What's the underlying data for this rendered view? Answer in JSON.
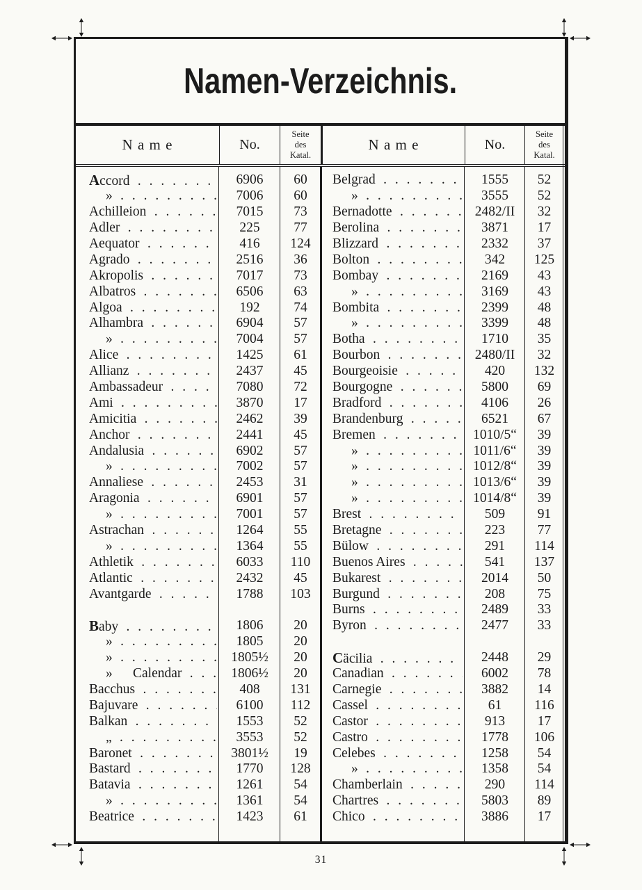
{
  "page": {
    "title": "Namen-Verzeichnis.",
    "page_number": "31"
  },
  "colors": {
    "ink": "#1c1c1c",
    "paper": "#fafaf6"
  },
  "table": {
    "header": {
      "name": "N a m e",
      "no": "No.",
      "seite_lines": [
        "Seite",
        "des",
        "Katal."
      ]
    },
    "left_rows": [
      {
        "name": "Accord",
        "cap": true,
        "no": "6906",
        "seite": "60"
      },
      {
        "name": "»",
        "ditto": true,
        "no": "7006",
        "seite": "60"
      },
      {
        "name": "Achilleion",
        "no": "7015",
        "seite": "73"
      },
      {
        "name": "Adler",
        "no": "225",
        "seite": "77"
      },
      {
        "name": "Aequator",
        "no": "416",
        "seite": "124"
      },
      {
        "name": "Agrado",
        "no": "2516",
        "seite": "36"
      },
      {
        "name": "Akropolis",
        "no": "7017",
        "seite": "73"
      },
      {
        "name": "Albatros",
        "no": "6506",
        "seite": "63"
      },
      {
        "name": "Algoa",
        "no": "192",
        "seite": "74"
      },
      {
        "name": "Alhambra",
        "no": "6904",
        "seite": "57"
      },
      {
        "name": "»",
        "ditto": true,
        "no": "7004",
        "seite": "57"
      },
      {
        "name": "Alice",
        "no": "1425",
        "seite": "61"
      },
      {
        "name": "Allianz",
        "no": "2437",
        "seite": "45"
      },
      {
        "name": "Ambassadeur",
        "no": "7080",
        "seite": "72"
      },
      {
        "name": "Ami",
        "no": "3870",
        "seite": "17"
      },
      {
        "name": "Amicitia",
        "no": "2462",
        "seite": "39"
      },
      {
        "name": "Anchor",
        "no": "2441",
        "seite": "45"
      },
      {
        "name": "Andalusia",
        "no": "6902",
        "seite": "57"
      },
      {
        "name": "»",
        "ditto": true,
        "no": "7002",
        "seite": "57"
      },
      {
        "name": "Annaliese",
        "no": "2453",
        "seite": "31"
      },
      {
        "name": "Aragonia",
        "no": "6901",
        "seite": "57"
      },
      {
        "name": "»",
        "ditto": true,
        "no": "7001",
        "seite": "57"
      },
      {
        "name": "Astrachan",
        "no": "1264",
        "seite": "55"
      },
      {
        "name": "»",
        "ditto": true,
        "no": "1364",
        "seite": "55"
      },
      {
        "name": "Athletik",
        "no": "6033",
        "seite": "110"
      },
      {
        "name": "Atlantic",
        "no": "2432",
        "seite": "45"
      },
      {
        "name": "Avantgarde",
        "no": "1788",
        "seite": "103"
      },
      {
        "gap": true
      },
      {
        "name": "Baby",
        "cap": true,
        "no": "1806",
        "seite": "20"
      },
      {
        "name": "»",
        "ditto": true,
        "no": "1805",
        "seite": "20"
      },
      {
        "name": "»",
        "ditto": true,
        "no": "1805½",
        "seite": "20"
      },
      {
        "name": "»      Calendar",
        "ditto": true,
        "no": "1806½",
        "seite": "20"
      },
      {
        "name": "Bacchus",
        "no": "408",
        "seite": "131"
      },
      {
        "name": "Bajuvare",
        "no": "6100",
        "seite": "112"
      },
      {
        "name": "Balkan",
        "no": "1553",
        "seite": "52"
      },
      {
        "name": "„",
        "ditto": true,
        "no": "3553",
        "seite": "52"
      },
      {
        "name": "Baronet",
        "no": "3801½",
        "seite": "19"
      },
      {
        "name": "Bastard",
        "no": "1770",
        "seite": "128"
      },
      {
        "name": "Batavia",
        "no": "1261",
        "seite": "54"
      },
      {
        "name": "»",
        "ditto": true,
        "no": "1361",
        "seite": "54"
      },
      {
        "name": "Beatrice",
        "no": "1423",
        "seite": "61"
      }
    ],
    "right_rows": [
      {
        "name": "Belgrad",
        "no": "1555",
        "seite": "52"
      },
      {
        "name": "»",
        "ditto": true,
        "no": "3555",
        "seite": "52"
      },
      {
        "name": "Bernadotte",
        "no": "2482/II",
        "seite": "32"
      },
      {
        "name": "Berolina",
        "no": "3871",
        "seite": "17"
      },
      {
        "name": "Blizzard",
        "no": "2332",
        "seite": "37"
      },
      {
        "name": "Bolton",
        "no": "342",
        "seite": "125"
      },
      {
        "name": "Bombay",
        "no": "2169",
        "seite": "43"
      },
      {
        "name": "»",
        "ditto": true,
        "no": "3169",
        "seite": "43"
      },
      {
        "name": "Bombita",
        "no": "2399",
        "seite": "48"
      },
      {
        "name": "»",
        "ditto": true,
        "no": "3399",
        "seite": "48"
      },
      {
        "name": "Botha",
        "no": "1710",
        "seite": "35"
      },
      {
        "name": "Bourbon",
        "no": "2480/II",
        "seite": "32"
      },
      {
        "name": "Bourgeoisie",
        "no": "420",
        "seite": "132"
      },
      {
        "name": "Bourgogne",
        "no": "5800",
        "seite": "69"
      },
      {
        "name": "Bradford",
        "no": "4106",
        "seite": "26"
      },
      {
        "name": "Brandenburg",
        "no": "6521",
        "seite": "67"
      },
      {
        "name": "Bremen",
        "no": "1010/5“",
        "seite": "39"
      },
      {
        "name": "»",
        "ditto": true,
        "no": "1011/6“",
        "seite": "39"
      },
      {
        "name": "»",
        "ditto": true,
        "no": "1012/8“",
        "seite": "39"
      },
      {
        "name": "»",
        "ditto": true,
        "no": "1013/6“",
        "seite": "39"
      },
      {
        "name": "»",
        "ditto": true,
        "no": "1014/8“",
        "seite": "39"
      },
      {
        "name": "Brest",
        "no": "509",
        "seite": "91"
      },
      {
        "name": "Bretagne",
        "no": "223",
        "seite": "77"
      },
      {
        "name": "Bülow",
        "no": "291",
        "seite": "114"
      },
      {
        "name": "Buenos Aires",
        "no": "541",
        "seite": "137"
      },
      {
        "name": "Bukarest",
        "no": "2014",
        "seite": "50"
      },
      {
        "name": "Burgund",
        "no": "208",
        "seite": "75"
      },
      {
        "name": "Burns",
        "no": "2489",
        "seite": "33"
      },
      {
        "name": "Byron",
        "no": "2477",
        "seite": "33"
      },
      {
        "gap": true
      },
      {
        "name": "Cäcilia",
        "cap": true,
        "no": "2448",
        "seite": "29"
      },
      {
        "name": "Canadian",
        "no": "6002",
        "seite": "78"
      },
      {
        "name": "Carnegie",
        "no": "3882",
        "seite": "14"
      },
      {
        "name": "Cassel",
        "no": "61",
        "seite": "116"
      },
      {
        "name": "Castor",
        "no": "913",
        "seite": "17"
      },
      {
        "name": "Castro",
        "no": "1778",
        "seite": "106"
      },
      {
        "name": "Celebes",
        "no": "1258",
        "seite": "54"
      },
      {
        "name": "»",
        "ditto": true,
        "no": "1358",
        "seite": "54"
      },
      {
        "name": "Chamberlain",
        "no": "290",
        "seite": "114"
      },
      {
        "name": "Chartres",
        "no": "5803",
        "seite": "89"
      },
      {
        "name": "Chico",
        "no": "3886",
        "seite": "17"
      }
    ]
  }
}
